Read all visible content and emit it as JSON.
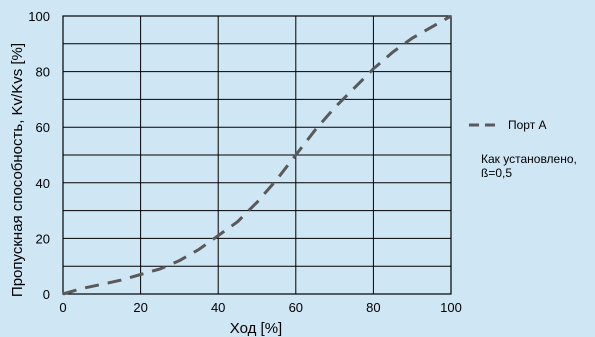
{
  "chart_data": {
    "type": "line",
    "title": "",
    "xlabel": "Ход [%]",
    "ylabel": "Пропускная способность, Kv/Kvs [%]",
    "xlim": [
      0,
      100
    ],
    "ylim": [
      0,
      100
    ],
    "x_ticks": [
      0,
      20,
      40,
      60,
      80,
      100
    ],
    "y_ticks": [
      0,
      20,
      40,
      60,
      80,
      100
    ],
    "x_grid_step": 20,
    "y_grid_step": 10,
    "grid": true,
    "legend_position": "right",
    "series": [
      {
        "name": "Порт А",
        "style": "dashed",
        "color": "#595959",
        "x": [
          0,
          5,
          10,
          15,
          20,
          25,
          30,
          35,
          40,
          45,
          50,
          55,
          60,
          65,
          70,
          75,
          80,
          85,
          90,
          95,
          100
        ],
        "y": [
          0,
          2,
          3.5,
          5,
          7,
          9,
          12,
          16,
          21,
          26,
          33,
          41,
          50,
          59,
          67,
          74,
          81,
          87,
          92,
          96,
          100
        ]
      }
    ],
    "annotation": {
      "lines": [
        "Как установлено,",
        "ß=0,5"
      ]
    }
  },
  "colors": {
    "background": "#cfe6f5",
    "plot_background": "#cfe6f5",
    "grid": "#000000",
    "series": "#595959"
  }
}
